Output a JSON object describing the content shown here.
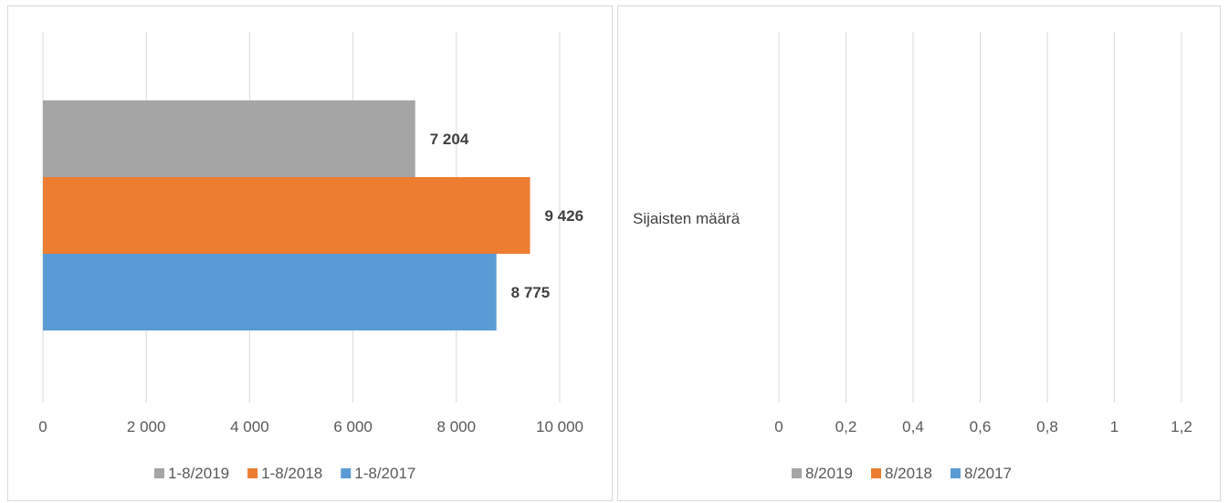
{
  "chart_data": [
    {
      "type": "bar",
      "orientation": "horizontal",
      "title": "",
      "xlabel": "",
      "ylabel": "",
      "xlim": [
        0,
        10000
      ],
      "xticks": [
        "0",
        "2 000",
        "4 000",
        "6 000",
        "8 000",
        "10 000"
      ],
      "grid": true,
      "legend_position": "bottom",
      "series": [
        {
          "name": "1-8/2019",
          "values": [
            7204
          ],
          "label": "7 204",
          "color": "#a5a5a5"
        },
        {
          "name": "1-8/2018",
          "values": [
            9426
          ],
          "label": "9 426",
          "color": "#ed7d31"
        },
        {
          "name": "1-8/2017",
          "values": [
            8775
          ],
          "label": "8 775",
          "color": "#5b9bd5"
        }
      ]
    },
    {
      "type": "bar",
      "orientation": "horizontal",
      "title": "",
      "xlabel": "",
      "ylabel": "",
      "categories": [
        "Sijaisten määrä"
      ],
      "xlim": [
        0,
        1.2
      ],
      "xticks": [
        "0",
        "0,2",
        "0,4",
        "0,6",
        "0,8",
        "1",
        "1,2"
      ],
      "grid": true,
      "legend_position": "bottom",
      "series": [
        {
          "name": "8/2019",
          "values": [
            0
          ],
          "color": "#a5a5a5"
        },
        {
          "name": "8/2018",
          "values": [
            0
          ],
          "color": "#ed7d31"
        },
        {
          "name": "8/2017",
          "values": [
            0
          ],
          "color": "#5b9bd5"
        }
      ]
    }
  ]
}
